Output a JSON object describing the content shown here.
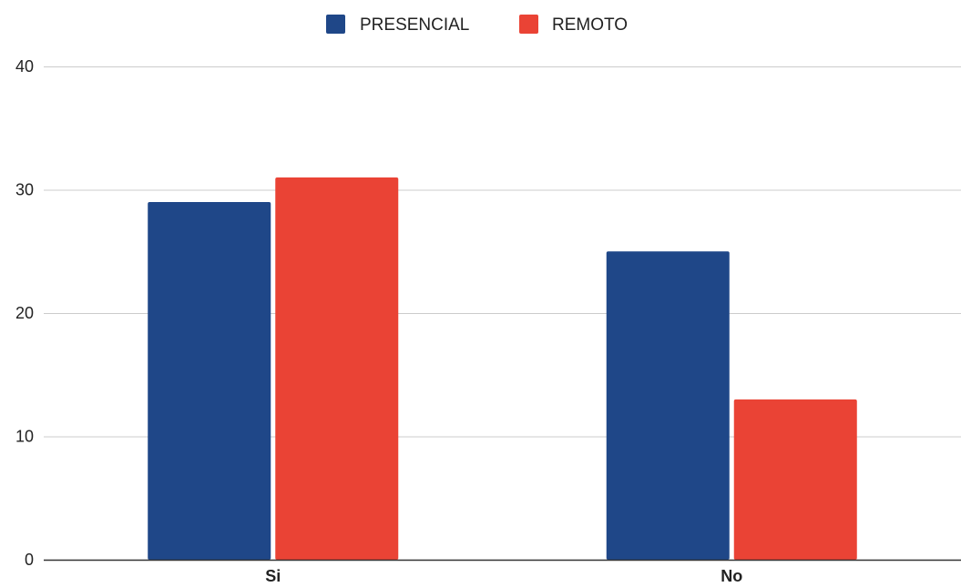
{
  "chart_data": {
    "type": "bar",
    "title": "",
    "xlabel": "",
    "ylabel": "",
    "categories": [
      "Si",
      "No"
    ],
    "series": [
      {
        "name": "PRESENCIAL",
        "color": "#1f4788",
        "values": [
          29,
          25
        ]
      },
      {
        "name": "REMOTO",
        "color": "#ea4335",
        "values": [
          31,
          13
        ]
      }
    ],
    "ylim": [
      0,
      40
    ],
    "yticks": [
      "0",
      "10",
      "20",
      "30",
      "40"
    ],
    "grid": true,
    "legend_position": "top-center"
  }
}
